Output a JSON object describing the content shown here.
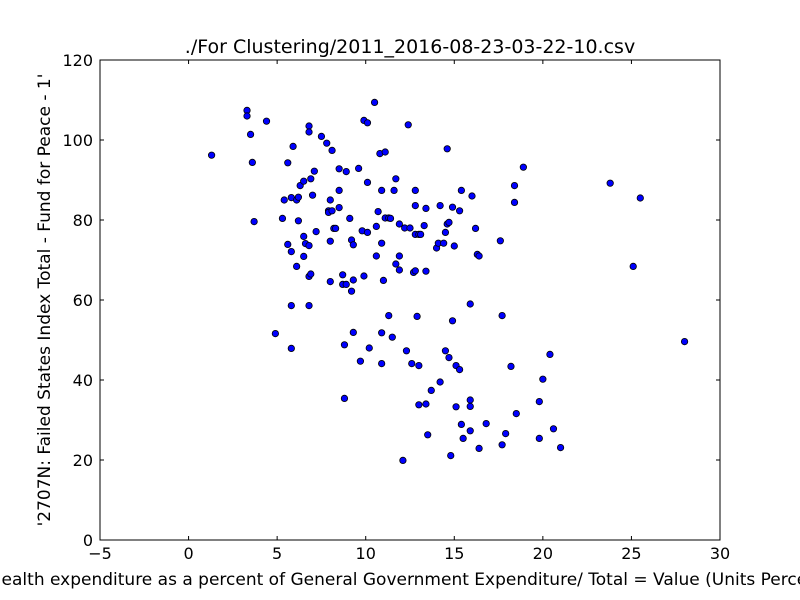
{
  "chart_data": {
    "type": "scatter",
    "title": "./For Clustering/2011_2016-08-23-03-22-10.csv",
    "xlabel": "Health expenditure as a percent of General Government Expenditure/ Total = Value (Units Percent)",
    "ylabel": "'2707N: Failed States Index Total - Fund for Peace - 1'",
    "xlim": [
      -5,
      30
    ],
    "ylim": [
      0,
      120
    ],
    "xticks": [
      "−5",
      "0",
      "5",
      "10",
      "15",
      "20",
      "25",
      "30"
    ],
    "yticks": [
      "0",
      "20",
      "40",
      "60",
      "80",
      "100",
      "120"
    ],
    "grid": false,
    "marker_color": "#0000ff",
    "marker_edge": "#000000",
    "points": [
      [
        1.3,
        96.2
      ],
      [
        3.3,
        107.4
      ],
      [
        3.3,
        106.0
      ],
      [
        3.5,
        101.4
      ],
      [
        3.6,
        94.4
      ],
      [
        3.7,
        79.6
      ],
      [
        4.4,
        104.7
      ],
      [
        4.9,
        51.6
      ],
      [
        5.3,
        80.4
      ],
      [
        5.4,
        85.0
      ],
      [
        5.6,
        94.3
      ],
      [
        5.6,
        73.9
      ],
      [
        5.8,
        72.1
      ],
      [
        5.8,
        85.6
      ],
      [
        5.8,
        47.9
      ],
      [
        5.8,
        58.6
      ],
      [
        5.9,
        98.4
      ],
      [
        6.1,
        85.0
      ],
      [
        6.1,
        68.4
      ],
      [
        6.2,
        79.8
      ],
      [
        6.2,
        85.7
      ],
      [
        6.3,
        88.6
      ],
      [
        6.5,
        70.9
      ],
      [
        6.5,
        75.9
      ],
      [
        6.5,
        89.7
      ],
      [
        6.6,
        74.1
      ],
      [
        6.8,
        103.5
      ],
      [
        6.8,
        102.0
      ],
      [
        6.8,
        73.6
      ],
      [
        6.8,
        65.9
      ],
      [
        6.8,
        58.6
      ],
      [
        6.9,
        90.3
      ],
      [
        6.9,
        66.5
      ],
      [
        7.0,
        86.2
      ],
      [
        7.1,
        92.2
      ],
      [
        7.2,
        77.1
      ],
      [
        7.5,
        100.9
      ],
      [
        7.8,
        99.2
      ],
      [
        7.9,
        82.3
      ],
      [
        7.9,
        81.9
      ],
      [
        8.0,
        85.0
      ],
      [
        8.0,
        74.7
      ],
      [
        8.0,
        64.6
      ],
      [
        8.1,
        82.3
      ],
      [
        8.1,
        97.4
      ],
      [
        8.2,
        77.9
      ],
      [
        8.3,
        77.9
      ],
      [
        8.5,
        83.1
      ],
      [
        8.5,
        87.4
      ],
      [
        8.5,
        92.8
      ],
      [
        8.7,
        66.3
      ],
      [
        8.7,
        63.9
      ],
      [
        8.8,
        48.8
      ],
      [
        8.8,
        35.4
      ],
      [
        8.9,
        63.9
      ],
      [
        8.9,
        92.1
      ],
      [
        9.1,
        80.4
      ],
      [
        9.2,
        62.2
      ],
      [
        9.2,
        75.0
      ],
      [
        9.3,
        51.9
      ],
      [
        9.3,
        65.0
      ],
      [
        9.3,
        73.8
      ],
      [
        9.6,
        92.9
      ],
      [
        9.7,
        44.7
      ],
      [
        9.8,
        77.3
      ],
      [
        9.9,
        66.0
      ],
      [
        9.9,
        104.9
      ],
      [
        10.1,
        89.4
      ],
      [
        10.1,
        104.3
      ],
      [
        10.1,
        76.9
      ],
      [
        10.2,
        48.0
      ],
      [
        10.5,
        109.4
      ],
      [
        10.6,
        78.4
      ],
      [
        10.6,
        71.0
      ],
      [
        10.7,
        82.1
      ],
      [
        10.8,
        96.6
      ],
      [
        10.9,
        87.4
      ],
      [
        10.9,
        74.2
      ],
      [
        10.9,
        51.8
      ],
      [
        10.9,
        44.1
      ],
      [
        11.0,
        64.9
      ],
      [
        11.1,
        97.0
      ],
      [
        11.1,
        80.5
      ],
      [
        11.3,
        80.5
      ],
      [
        11.3,
        56.1
      ],
      [
        11.4,
        80.4
      ],
      [
        11.5,
        50.7
      ],
      [
        11.6,
        87.4
      ],
      [
        11.7,
        90.3
      ],
      [
        11.7,
        69.0
      ],
      [
        11.9,
        79.0
      ],
      [
        11.9,
        71.0
      ],
      [
        11.9,
        67.5
      ],
      [
        12.1,
        19.9
      ],
      [
        12.2,
        78.0
      ],
      [
        12.3,
        47.3
      ],
      [
        12.4,
        103.8
      ],
      [
        12.5,
        78.0
      ],
      [
        12.6,
        44.1
      ],
      [
        12.7,
        66.9
      ],
      [
        12.8,
        87.4
      ],
      [
        12.8,
        83.6
      ],
      [
        12.8,
        76.4
      ],
      [
        12.8,
        67.3
      ],
      [
        12.9,
        55.9
      ],
      [
        13.0,
        76.4
      ],
      [
        13.0,
        43.6
      ],
      [
        13.0,
        33.8
      ],
      [
        13.1,
        76.4
      ],
      [
        13.3,
        78.6
      ],
      [
        13.4,
        34.0
      ],
      [
        13.4,
        82.9
      ],
      [
        13.4,
        67.2
      ],
      [
        13.5,
        26.3
      ],
      [
        13.7,
        37.4
      ],
      [
        14.0,
        73.0
      ],
      [
        14.1,
        74.2
      ],
      [
        14.2,
        83.6
      ],
      [
        14.2,
        39.5
      ],
      [
        14.4,
        74.2
      ],
      [
        14.5,
        47.3
      ],
      [
        14.5,
        76.9
      ],
      [
        14.6,
        97.8
      ],
      [
        14.6,
        79.0
      ],
      [
        14.7,
        79.4
      ],
      [
        14.7,
        45.6
      ],
      [
        14.8,
        21.1
      ],
      [
        14.9,
        83.2
      ],
      [
        14.9,
        54.8
      ],
      [
        15.0,
        73.5
      ],
      [
        15.1,
        43.6
      ],
      [
        15.1,
        33.3
      ],
      [
        15.3,
        82.3
      ],
      [
        15.3,
        42.6
      ],
      [
        15.4,
        87.4
      ],
      [
        15.4,
        28.9
      ],
      [
        15.5,
        25.4
      ],
      [
        15.9,
        59.0
      ],
      [
        15.9,
        35.0
      ],
      [
        15.9,
        33.4
      ],
      [
        15.9,
        27.3
      ],
      [
        16.0,
        86.0
      ],
      [
        16.2,
        77.9
      ],
      [
        16.3,
        71.4
      ],
      [
        16.4,
        71.0
      ],
      [
        16.4,
        22.9
      ],
      [
        16.8,
        29.1
      ],
      [
        17.6,
        74.8
      ],
      [
        17.7,
        56.1
      ],
      [
        17.7,
        23.8
      ],
      [
        17.9,
        26.6
      ],
      [
        18.2,
        43.4
      ],
      [
        18.4,
        88.6
      ],
      [
        18.4,
        84.4
      ],
      [
        18.5,
        31.6
      ],
      [
        18.9,
        93.2
      ],
      [
        19.8,
        34.6
      ],
      [
        19.8,
        25.4
      ],
      [
        20.0,
        40.2
      ],
      [
        20.4,
        46.4
      ],
      [
        20.6,
        27.8
      ],
      [
        21.0,
        23.1
      ],
      [
        23.8,
        89.2
      ],
      [
        25.1,
        68.4
      ],
      [
        25.5,
        85.5
      ],
      [
        28.0,
        49.6
      ]
    ]
  }
}
